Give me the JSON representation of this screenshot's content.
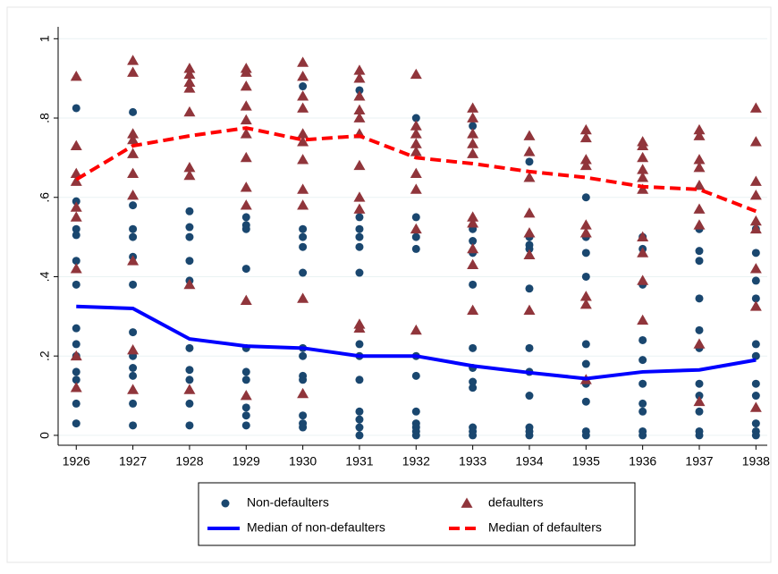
{
  "chart_data": {
    "type": "scatter",
    "xlim": [
      1925.68,
      1938.2
    ],
    "ylim": [
      -0.025,
      1.03
    ],
    "xticks": [
      1926,
      1927,
      1928,
      1929,
      1930,
      1931,
      1932,
      1933,
      1934,
      1935,
      1936,
      1937,
      1938
    ],
    "yticks": [
      0,
      {
        "value": 0.2,
        "label": ".2"
      },
      {
        "value": 0.4,
        "label": ".4"
      },
      {
        "value": 0.6,
        "label": ".6"
      },
      {
        "value": 0.8,
        "label": ".8"
      },
      1
    ],
    "grid": true,
    "legend": "bottom",
    "series": [
      {
        "name": "Non-defaulters",
        "type": "scatter",
        "marker": "circle",
        "color": "#1a476f",
        "x": [
          1926,
          1926,
          1926,
          1926,
          1926,
          1926,
          1926,
          1926,
          1926,
          1926,
          1926,
          1926,
          1926,
          1927,
          1927,
          1927,
          1927,
          1927,
          1927,
          1927,
          1927,
          1927,
          1927,
          1927,
          1927,
          1928,
          1928,
          1928,
          1928,
          1928,
          1928,
          1928,
          1928,
          1928,
          1928,
          1929,
          1929,
          1929,
          1929,
          1929,
          1929,
          1929,
          1929,
          1929,
          1929,
          1930,
          1930,
          1930,
          1930,
          1930,
          1930,
          1930,
          1930,
          1930,
          1930,
          1930,
          1930,
          1931,
          1931,
          1931,
          1931,
          1931,
          1931,
          1931,
          1931,
          1931,
          1931,
          1931,
          1931,
          1931,
          1932,
          1932,
          1932,
          1932,
          1932,
          1932,
          1932,
          1932,
          1932,
          1932,
          1932,
          1933,
          1933,
          1933,
          1933,
          1933,
          1933,
          1933,
          1933,
          1933,
          1933,
          1933,
          1933,
          1934,
          1934,
          1934,
          1934,
          1934,
          1934,
          1934,
          1934,
          1934,
          1934,
          1934,
          1935,
          1935,
          1935,
          1935,
          1935,
          1935,
          1935,
          1935,
          1935,
          1935,
          1936,
          1936,
          1936,
          1936,
          1936,
          1936,
          1936,
          1936,
          1936,
          1936,
          1937,
          1937,
          1937,
          1937,
          1937,
          1937,
          1937,
          1937,
          1937,
          1937,
          1937,
          1938,
          1938,
          1938,
          1938,
          1938,
          1938,
          1938,
          1938,
          1938,
          1938,
          1938
        ],
        "values": [
          0.825,
          0.59,
          0.52,
          0.505,
          0.44,
          0.38,
          0.27,
          0.23,
          0.2,
          0.16,
          0.14,
          0.08,
          0.03,
          0.815,
          0.58,
          0.52,
          0.5,
          0.45,
          0.38,
          0.26,
          0.2,
          0.17,
          0.15,
          0.08,
          0.025,
          0.565,
          0.525,
          0.5,
          0.44,
          0.39,
          0.22,
          0.165,
          0.14,
          0.08,
          0.025,
          0.55,
          0.53,
          0.52,
          0.42,
          0.22,
          0.16,
          0.14,
          0.07,
          0.05,
          0.025,
          0.88,
          0.52,
          0.5,
          0.475,
          0.41,
          0.22,
          0.2,
          0.15,
          0.14,
          0.05,
          0.03,
          0.02,
          0.87,
          0.55,
          0.52,
          0.5,
          0.475,
          0.41,
          0.23,
          0.2,
          0.14,
          0.06,
          0.04,
          0.02,
          0,
          0.8,
          0.55,
          0.5,
          0.47,
          0.2,
          0.15,
          0.06,
          0.03,
          0.02,
          0.01,
          0,
          0.78,
          0.52,
          0.49,
          0.46,
          0.38,
          0.22,
          0.17,
          0.135,
          0.12,
          0.02,
          0.01,
          0,
          0.69,
          0.5,
          0.48,
          0.47,
          0.37,
          0.22,
          0.16,
          0.1,
          0.02,
          0.01,
          0,
          0.6,
          0.5,
          0.46,
          0.4,
          0.23,
          0.18,
          0.13,
          0.085,
          0.01,
          0,
          0.5,
          0.47,
          0.38,
          0.24,
          0.19,
          0.13,
          0.08,
          0.06,
          0.01,
          0,
          0.52,
          0.465,
          0.44,
          0.345,
          0.265,
          0.22,
          0.13,
          0.1,
          0.06,
          0.01,
          0,
          0.52,
          0.46,
          0.39,
          0.345,
          0.23,
          0.2,
          0.13,
          0.1,
          0.03,
          0.01,
          0
        ]
      },
      {
        "name": "defaulters",
        "type": "scatter",
        "marker": "triangle",
        "color": "#90353b",
        "x": [
          1926,
          1926,
          1926,
          1926,
          1926,
          1926,
          1926,
          1926,
          1926,
          1927,
          1927,
          1927,
          1927,
          1927,
          1927,
          1927,
          1927,
          1927,
          1927,
          1928,
          1928,
          1928,
          1928,
          1928,
          1928,
          1928,
          1928,
          1928,
          1929,
          1929,
          1929,
          1929,
          1929,
          1929,
          1929,
          1929,
          1929,
          1929,
          1929,
          1930,
          1930,
          1930,
          1930,
          1930,
          1930,
          1930,
          1930,
          1930,
          1930,
          1930,
          1931,
          1931,
          1931,
          1931,
          1931,
          1931,
          1931,
          1931,
          1931,
          1931,
          1931,
          1932,
          1932,
          1932,
          1932,
          1932,
          1932,
          1932,
          1932,
          1932,
          1933,
          1933,
          1933,
          1933,
          1933,
          1933,
          1933,
          1933,
          1933,
          1933,
          1934,
          1934,
          1934,
          1934,
          1934,
          1934,
          1934,
          1935,
          1935,
          1935,
          1935,
          1935,
          1935,
          1935,
          1935,
          1935,
          1936,
          1936,
          1936,
          1936,
          1936,
          1936,
          1936,
          1936,
          1936,
          1936,
          1937,
          1937,
          1937,
          1937,
          1937,
          1937,
          1937,
          1937,
          1937,
          1938,
          1938,
          1938,
          1938,
          1938,
          1938,
          1938,
          1938,
          1938
        ],
        "values": [
          0.905,
          0.73,
          0.66,
          0.64,
          0.575,
          0.55,
          0.42,
          0.2,
          0.12,
          0.945,
          0.915,
          0.76,
          0.745,
          0.71,
          0.66,
          0.605,
          0.44,
          0.215,
          0.115,
          0.925,
          0.91,
          0.89,
          0.875,
          0.815,
          0.675,
          0.655,
          0.38,
          0.115,
          0.925,
          0.915,
          0.88,
          0.83,
          0.795,
          0.76,
          0.7,
          0.625,
          0.58,
          0.34,
          0.1,
          0.94,
          0.905,
          0.855,
          0.825,
          0.76,
          0.74,
          0.695,
          0.62,
          0.58,
          0.345,
          0.105,
          0.92,
          0.9,
          0.855,
          0.82,
          0.8,
          0.76,
          0.68,
          0.6,
          0.57,
          0.28,
          0.27,
          0.91,
          0.78,
          0.76,
          0.735,
          0.715,
          0.66,
          0.62,
          0.52,
          0.265,
          0.825,
          0.8,
          0.76,
          0.735,
          0.71,
          0.55,
          0.535,
          0.47,
          0.43,
          0.315,
          0.755,
          0.715,
          0.65,
          0.56,
          0.51,
          0.455,
          0.315,
          0.77,
          0.75,
          0.695,
          0.68,
          0.53,
          0.51,
          0.35,
          0.33,
          0.14,
          0.74,
          0.73,
          0.7,
          0.67,
          0.65,
          0.62,
          0.5,
          0.46,
          0.39,
          0.29,
          0.77,
          0.755,
          0.695,
          0.675,
          0.63,
          0.57,
          0.53,
          0.23,
          0.085,
          0.825,
          0.74,
          0.64,
          0.605,
          0.54,
          0.52,
          0.42,
          0.325,
          0.07
        ]
      },
      {
        "name": "Median of non-defaulters",
        "type": "line",
        "dash": false,
        "color": "#0000ff",
        "x": [
          1926,
          1927,
          1928,
          1929,
          1930,
          1931,
          1932,
          1933,
          1934,
          1935,
          1936,
          1937,
          1938
        ],
        "values": [
          0.325,
          0.32,
          0.243,
          0.225,
          0.22,
          0.2,
          0.2,
          0.175,
          0.158,
          0.143,
          0.16,
          0.165,
          0.19
        ]
      },
      {
        "name": "Median of defaulters",
        "type": "line",
        "dash": true,
        "color": "#ff0000",
        "x": [
          1926,
          1927,
          1928,
          1929,
          1930,
          1931,
          1932,
          1933,
          1934,
          1935,
          1936,
          1937,
          1938
        ],
        "values": [
          0.645,
          0.73,
          0.755,
          0.775,
          0.745,
          0.755,
          0.7,
          0.685,
          0.665,
          0.65,
          0.627,
          0.62,
          0.565
        ]
      }
    ]
  }
}
